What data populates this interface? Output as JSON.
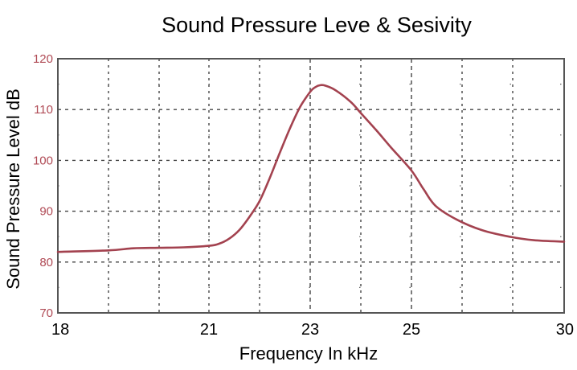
{
  "chart_data": {
    "type": "line",
    "title": "Sound Pressure Leve & Sesivity",
    "xlabel": "Frequency In kHz",
    "ylabel": "Sound Pressure Level dB",
    "xlim": [
      18,
      30
    ],
    "ylim": [
      70,
      120
    ],
    "x_ticks": [
      18,
      21,
      23,
      25,
      30
    ],
    "y_ticks": [
      70,
      80,
      90,
      100,
      110,
      120
    ],
    "grid": true,
    "legend": "none",
    "colors": {
      "line": "#A3424F",
      "tick_label_y": "#B04A55",
      "frame": "#555555",
      "grid": "#444444"
    },
    "series": [
      {
        "x": [
          18.0,
          19.0,
          19.5,
          20.0,
          20.5,
          21.0,
          21.2,
          21.4,
          21.6,
          21.8,
          22.0,
          22.2,
          22.4,
          22.6,
          22.8,
          23.0,
          23.1,
          23.2,
          23.3,
          23.5,
          23.8,
          24.0,
          24.3,
          24.6,
          25.0,
          25.4,
          25.8,
          26.5,
          27.3,
          28.2,
          29.0,
          30.0
        ],
        "y": [
          82.0,
          82.3,
          82.7,
          82.8,
          82.9,
          83.2,
          83.6,
          84.6,
          86.3,
          88.9,
          92.0,
          96.5,
          101.5,
          106.3,
          110.5,
          113.5,
          114.4,
          114.8,
          114.7,
          113.8,
          111.5,
          109.3,
          106.0,
          102.5,
          98.0,
          94.3,
          91.0,
          88.3,
          86.3,
          85.0,
          84.3,
          84.0
        ]
      }
    ]
  }
}
